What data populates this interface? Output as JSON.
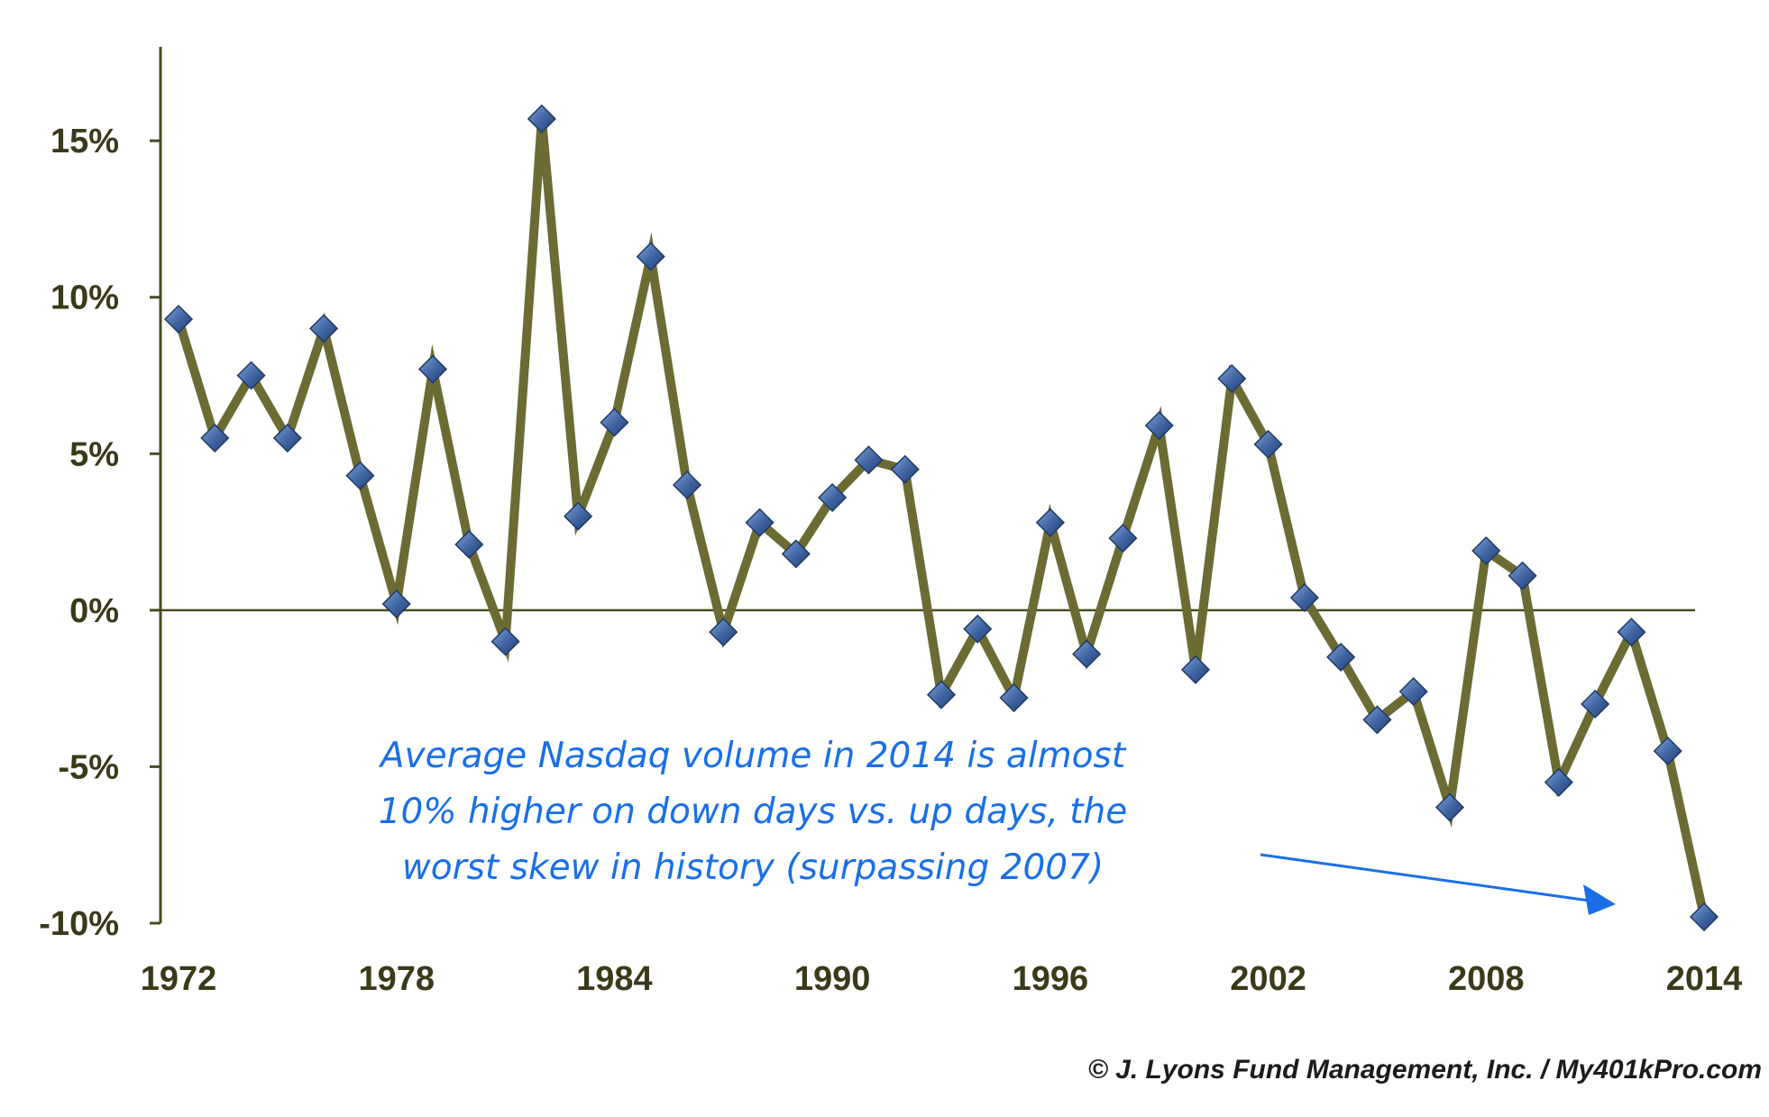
{
  "chart_data": {
    "type": "line",
    "title": "",
    "xlabel": "",
    "ylabel": "",
    "x": [
      1972,
      1973,
      1974,
      1975,
      1976,
      1977,
      1978,
      1979,
      1980,
      1981,
      1982,
      1983,
      1984,
      1985,
      1986,
      1987,
      1988,
      1989,
      1990,
      1991,
      1992,
      1993,
      1994,
      1995,
      1996,
      1997,
      1998,
      1999,
      2000,
      2001,
      2002,
      2003,
      2004,
      2005,
      2006,
      2007,
      2008,
      2009,
      2010,
      2011,
      2012,
      2013,
      2014
    ],
    "series": [
      {
        "values": [
          9.3,
          5.5,
          7.5,
          5.5,
          9.0,
          4.3,
          0.2,
          7.7,
          2.1,
          -1.0,
          15.7,
          3.0,
          6.0,
          11.3,
          4.0,
          -0.7,
          2.8,
          1.8,
          3.6,
          4.8,
          4.5,
          -2.7,
          -0.6,
          -2.8,
          2.8,
          -1.4,
          2.3,
          5.9,
          -1.9,
          7.4,
          5.3,
          0.4,
          -1.5,
          -3.5,
          -2.6,
          -6.3,
          1.9,
          1.1,
          -5.5,
          -3.0,
          -0.7,
          -4.5,
          -9.8
        ]
      }
    ],
    "xticks": [
      "1972",
      "1978",
      "1984",
      "1990",
      "1996",
      "2002",
      "2008",
      "2014"
    ],
    "yticks": [
      "-10%",
      "-5%",
      "0%",
      "5%",
      "10%",
      "15%"
    ],
    "ytick_values": [
      -10,
      -5,
      0,
      5,
      10,
      15
    ],
    "xlim": [
      1972,
      2014
    ],
    "ylim": [
      -10,
      18
    ],
    "grid": false,
    "line_color": "#6b6b33",
    "marker_color": "#3d63a0",
    "annotation_color": "#1a6fe8"
  },
  "annotation": {
    "line1": "Average Nasdaq volume in 2014 is almost",
    "line2": "10% higher on down days vs. up days, the",
    "line3": "worst skew in history (surpassing 2007)"
  },
  "copyright": "© J. Lyons Fund Management, Inc. / My401kPro.com"
}
